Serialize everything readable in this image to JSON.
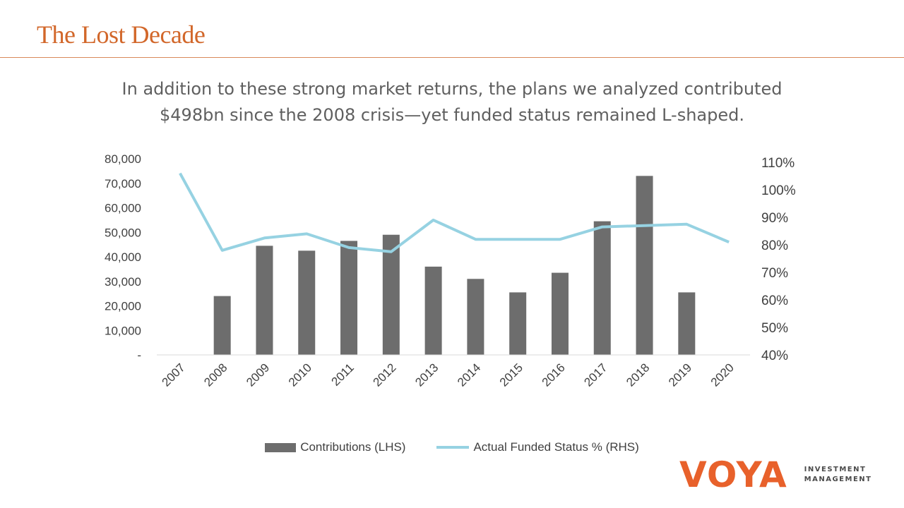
{
  "slide": {
    "title": "The Lost Decade",
    "subtitle_line1": "In addition to these strong market returns, the plans we analyzed contributed",
    "subtitle_line2": "$498bn since the 2008 crisis—yet funded status remained L-shaped."
  },
  "colors": {
    "title": "#d2672a",
    "bars": "#6d6d6d",
    "line": "#96d2e2",
    "brand": "#e8612b"
  },
  "logo": {
    "mark": "VOYA",
    "line1": "INVESTMENT",
    "line2": "MANAGEMENT"
  },
  "chart_data": {
    "type": "bar+line",
    "categories": [
      "2007",
      "2008",
      "2009",
      "2010",
      "2011",
      "2012",
      "2013",
      "2014",
      "2015",
      "2016",
      "2017",
      "2018",
      "2019",
      "2020"
    ],
    "series": [
      {
        "name": "Contributions (LHS)",
        "type": "bar",
        "axis": "left",
        "values": [
          null,
          24000,
          44500,
          42500,
          46500,
          49000,
          36000,
          31000,
          25500,
          33500,
          54500,
          73000,
          25500,
          null
        ]
      },
      {
        "name": "Actual Funded Status % (RHS)",
        "type": "line",
        "axis": "right",
        "values": [
          106,
          78,
          82.5,
          84,
          79,
          77.5,
          89,
          82,
          82,
          82,
          86.5,
          87,
          87.5,
          81
        ]
      }
    ],
    "left_axis": {
      "min": 0,
      "max": 80000,
      "step": 10000,
      "tick_labels": [
        "-",
        "10,000",
        "20,000",
        "30,000",
        "40,000",
        "50,000",
        "60,000",
        "70,000",
        "80,000"
      ]
    },
    "right_axis": {
      "min": 40,
      "max": 110,
      "step": 10,
      "tick_labels": [
        "40%",
        "50%",
        "60%",
        "70%",
        "80%",
        "90%",
        "100%",
        "110%"
      ]
    },
    "legend": "bottom-center",
    "grid": false
  }
}
